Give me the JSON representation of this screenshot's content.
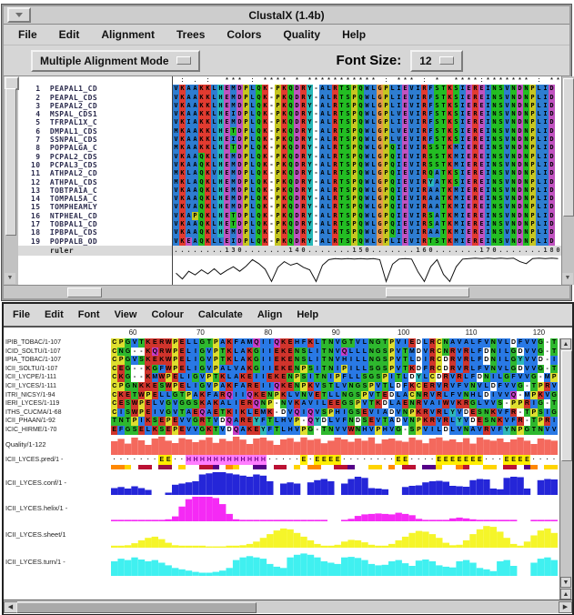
{
  "clustalx": {
    "title": "ClustalX (1.4b)",
    "menus": [
      "File",
      "Edit",
      "Alignment",
      "Trees",
      "Colors",
      "Quality",
      "Help"
    ],
    "mode_button": "Multiple Alignment Mode",
    "font_size_label": "Font Size:",
    "font_size_value": "12",
    "conservation": " : . :  *** : **** * *********** : *** : *  ****:******* : **",
    "ruler_label": "ruler",
    "ruler": "........130.......140.......150.......160.......170.......180",
    "sequences": [
      {
        "num": "1",
        "name": "PEAPAL1_CD",
        "seq": "VKAAKKLHEMDPLQK-PKQDRY-ALRTSPQWLGPLIEVIRFSTKSIEREINSVNDNPLID"
      },
      {
        "num": "2",
        "name": "PEAPAL_CDS",
        "seq": "VKAAKKLHEMDPLQK-PKQDRY-ALRTSPQWLGPLIEVIRFSTKSIEREINSVNDNPLID"
      },
      {
        "num": "3",
        "name": "PEAPAL2_CD",
        "seq": "VKAAKKLHEMDPLQK-PKQDRY-ALRTSPQWLGPLIEVIRFSTKSIEREINSVNDNPLID"
      },
      {
        "num": "4",
        "name": "MSPAL_CDS1",
        "seq": "VKAAKKLHEIDPLQK-PKQDRY-ALRTSPQWLGPLVEVIRFSTKSIEREINSVNDNPLID"
      },
      {
        "num": "5",
        "name": "TFRPAL1X_C",
        "seq": "VKIAKKLHEMDPLQK-PKQDRY-ALRTSPQWLGPLIEVIRFSTKSIEREINSVNDNPLID"
      },
      {
        "num": "6",
        "name": "DMPAL1_CDS",
        "seq": "MKAAKKLHETDPLQK-PKQDRY-ALRTSPQWLGPLVEVIRFSTKSIEREINSVNDNPLID"
      },
      {
        "num": "7",
        "name": "SSNPAL_CDS",
        "seq": "VKAAKKLHEIDPLQK-PKQDRY-ALRTSPQWLGPLVEVIRFSTKSIEREINSVNDNPLID"
      },
      {
        "num": "8",
        "name": "POPPALGA_C",
        "seq": "MKAAKKLHETDPLQK-PKQDRY-ALRTSPQWLGPQIEVIRSSTKMIEREINSVNDNPLID"
      },
      {
        "num": "9",
        "name": "PCPAL2_CDS",
        "seq": "VKAAQKLHEMDPLQK-PKQDRY-ALRTSPQWLGPQIEVIRSSTKMIEREINSVNDNPLID"
      },
      {
        "num": "10",
        "name": "PCPAL3_CDS",
        "seq": "VKAAQKLHEMDPLQK-PKQDRY-ALRTSPQWLGPQIEVIRSSTKMIEREINSVNDNPLID"
      },
      {
        "num": "11",
        "name": "ATHPAL2_CD",
        "seq": "MKLAQKVHEMDPLQK-PKQDRY-ALRTSPQWLGPQIEVIRQATKSIEREINSVNDNPLID"
      },
      {
        "num": "12",
        "name": "ATHPAL_CDS",
        "seq": "MKLAQKLHEMDPLQK-PKQDRY-ALRTSPQWLGPQIEVIRYATKSIEREINSVNDNPLID"
      },
      {
        "num": "13",
        "name": "TOBTPA1A_C",
        "seq": "VKAAQKLHEMDPLQK-PKQDRY-ALRTSPQWLGPQIEVIRAATKMIEREINSVNDNPLID"
      },
      {
        "num": "14",
        "name": "TOMPAL5A_C",
        "seq": "VKAAQKLHEMDPLQK-PKQDRY-ALRTSPQWLGPQIEVIRAATKMIEREINSVNDNPLID"
      },
      {
        "num": "15",
        "name": "TOMPHEAMLY",
        "seq": "VKVAQKLHEMDPLQK-PKQDRY-ALRTSPQWLGPQIEVIRAATKMIEREINSVNDNPLID"
      },
      {
        "num": "16",
        "name": "NTPHEAL_CD",
        "seq": "VKAPQKLHETDPLQK-PKQDRY-ALRTSPQWLGPQIEVIRSATKMIEREINSVNDNPLID"
      },
      {
        "num": "17",
        "name": "TOBPAL1_CD",
        "seq": "VKAAQKLHETDPLQK-PKQDRY-ALRTSPQWLGPQIEVIRSATKMIEREINSVNDNPLID"
      },
      {
        "num": "18",
        "name": "IPBPAL_CDS",
        "seq": "VKAAQKLHEMDPLQK-PKQDRY-ALRTSPQWLGPQIEVIRAATKMIEREINSVNDNPLID"
      },
      {
        "num": "19",
        "name": "POPPALB_OD",
        "seq": "VKEAQKLLEIDPLQK-PKQDRY-ALRTSPQWLGPLIEVIRTSTKMIEREINSVNDNPLID"
      }
    ],
    "color_groups": [
      {
        "res": "ACFILMVW",
        "color": "#2e7dd1"
      },
      {
        "res": "KR",
        "color": "#e23b30"
      },
      {
        "res": "DE",
        "color": "#c053c0"
      },
      {
        "res": "NQST",
        "color": "#23bd23"
      },
      {
        "res": "G",
        "color": "#e6974d"
      },
      {
        "res": "P",
        "color": "#c6c621"
      },
      {
        "res": "HY",
        "color": "#28b8b8"
      },
      {
        "res": "-",
        "color": "#ffffff"
      }
    ],
    "quality_curve": [
      [
        1,
        35
      ],
      [
        2,
        12
      ],
      [
        3,
        42
      ],
      [
        4,
        28
      ],
      [
        5,
        48
      ],
      [
        6,
        32
      ],
      [
        7,
        52
      ],
      [
        8,
        30
      ],
      [
        9,
        46
      ],
      [
        10,
        60
      ],
      [
        11,
        42
      ],
      [
        12,
        62
      ],
      [
        13,
        88
      ],
      [
        14,
        72
      ],
      [
        15,
        50
      ],
      [
        16,
        2
      ],
      [
        17,
        58
      ],
      [
        18,
        80
      ],
      [
        19,
        66
      ],
      [
        20,
        74
      ],
      [
        21,
        58
      ],
      [
        22,
        48
      ],
      [
        23,
        2
      ],
      [
        24,
        66
      ],
      [
        25,
        88
      ],
      [
        26,
        92
      ],
      [
        27,
        90
      ],
      [
        28,
        92
      ],
      [
        29,
        90
      ],
      [
        30,
        92
      ],
      [
        31,
        90
      ],
      [
        32,
        92
      ],
      [
        33,
        88
      ],
      [
        34,
        2
      ],
      [
        35,
        70
      ],
      [
        36,
        90
      ],
      [
        37,
        92
      ],
      [
        38,
        90
      ],
      [
        39,
        40
      ],
      [
        40,
        2
      ],
      [
        41,
        60
      ],
      [
        42,
        88
      ],
      [
        43,
        30
      ],
      [
        44,
        2
      ],
      [
        45,
        60
      ],
      [
        46,
        90
      ],
      [
        47,
        92
      ],
      [
        48,
        94
      ],
      [
        49,
        92
      ],
      [
        50,
        94
      ],
      [
        51,
        92
      ],
      [
        52,
        94
      ],
      [
        53,
        92
      ],
      [
        54,
        94
      ],
      [
        55,
        80
      ],
      [
        56,
        72
      ],
      [
        57,
        92
      ],
      [
        58,
        94
      ],
      [
        59,
        92
      ],
      [
        60,
        94
      ],
      [
        61,
        92
      ]
    ]
  },
  "jalview": {
    "menus": [
      "File",
      "Edit",
      "Font",
      "View",
      "Colour",
      "Calculate",
      "Align",
      "Help"
    ],
    "ruler_ticks": [
      {
        "label": "60",
        "col": 4
      },
      {
        "label": "70",
        "col": 14
      },
      {
        "label": "80",
        "col": 24
      },
      {
        "label": "90",
        "col": 34
      },
      {
        "label": "100",
        "col": 44
      },
      {
        "label": "110",
        "col": 54
      },
      {
        "label": "120",
        "col": 64
      }
    ],
    "sequences": [
      {
        "id": "IPIB_TOBAC/1-107",
        "seq": "CPGVTKERWPELLGTPAKFAMQIIQKEHFKLTNVGTVLNGTPVIEDLRCNAVALFVNVLDFVVG-T"
      },
      {
        "id": "ICID_SOLTU/1-107",
        "seq": "CNG--KQRWPELIGVPTKLAKGIIEKENSLITNVQLLLNGSPVTMDVRCNRVRLFDNILGDVVG-T"
      },
      {
        "id": "IPIA_TOBAC/1-107",
        "seq": "CPGVSKEKWPELIGVPTKLAKGIIEKENSLITNVHILLNGSPVTLDIRCDRVRLFDNILGYVVD-I"
      },
      {
        "id": "ICII_SOLTU/1-107",
        "seq": "CEG--KGFWPELIGVPALVAKGIIEKENPSITNIPILLSGSPVTKDFRCDRVRLFVNVLGDVVG-T"
      },
      {
        "id": "ICII_LYCPE/1-111",
        "seq": "CKG--KMWPELIGVPTKLAKEIIEKENPSITNIPFLLSGSPITLDYLCDRVRLFDNILGFVVG-MP"
      },
      {
        "id": "ICII_LYCES/1-111",
        "seq": "CPGNKKESWPELIGVPAKFAREIIQKENPKVSTLVNGSPVTLDFKCERVRVFVNVLDFVVG-TPRV"
      },
      {
        "id": "ITRI_NICSY/1-94",
        "seq": "CKETWPELLGTPAKFARQIIQKENPKLVNVETLLNGSPVTEDLACNRVRLFVNHLDIVVQ-MPKVG"
      },
      {
        "id": "IERI_LYCES/1-119",
        "seq": "CESWPELVGVGGSKAKALIERQNP-NVKAVILEEGSPVTKDLAENRVAIWVKRGLVVS-PPRIG-T"
      },
      {
        "id": "ITHS_CUCMA/1-68",
        "seq": "CISWPEIVGVTAEQAETKIKLEMK-DVQIQVSPHIGSEVIADVNPKRVRLYVDESNKVFR-TPSIG"
      },
      {
        "id": "ICII_PHAAN/1-92",
        "seq": "TNTPIKSEPEVVGRTVDQAREYFTLHVP-QYDLVFNDSEVTADVNPKRVRLYVDESNKVFR-TPRI"
      },
      {
        "id": "ICIC_HIRME/1-70",
        "seq": "EFGSELKSEPEVVGKTVDQAKEYFTLHVPG-TNVVWNHVPHVG-SPVILDLVNAVRVFYNPGTNVV"
      }
    ],
    "color_groups": [
      {
        "res": "AILMFVH",
        "color": "#2979e5"
      },
      {
        "res": "KRWE",
        "color": "#d0342c"
      },
      {
        "res": "GNST",
        "color": "#2eb82e"
      },
      {
        "res": "PC",
        "color": "#dede2e"
      },
      {
        "res": "Y",
        "color": "#2eb8b8"
      },
      {
        "res": "Q",
        "color": "#c83cc8"
      },
      {
        "res": "D-",
        "color": "#ffffff"
      }
    ],
    "annotations": {
      "quality": {
        "label": "Quality/1-122",
        "color": "#f4695d",
        "values": [
          75,
          88,
          62,
          95,
          80,
          55,
          90,
          100,
          78,
          65,
          92,
          85,
          70,
          82,
          96,
          66,
          88,
          76,
          100,
          84,
          60,
          90,
          95,
          78,
          55,
          85,
          92,
          72,
          96,
          82,
          88,
          64,
          78,
          95,
          85,
          72,
          90,
          78,
          96,
          62,
          85,
          90,
          78,
          72,
          95,
          82,
          64,
          90,
          96,
          78,
          85,
          70,
          92,
          62,
          96,
          84,
          78,
          90,
          70,
          85,
          96,
          78,
          60,
          90,
          84,
          78
        ]
      },
      "pred": {
        "label": "ICII_LYCES.pred/1 -",
        "string": ".......EE..HHHHHHHHHHHH.....E.EEEE........EE....EEEEEEE...EEEE....",
        "e_bg": "#ffee00",
        "h_bg": "#ff7dff",
        "h_fg": "#7a0a8c",
        "dot_fg": "#111111"
      },
      "stripe": {
        "code": "ooy.rr.mm.y..rrp.oy..pp.rr.y.oo..rrp..yy.o.rr.ppy..or..yy.rr.po.yy",
        "palette": {
          "y": "#ffd400",
          "o": "#ff8800",
          "r": "#bb1133",
          "p": "#550088",
          "m": "#991144",
          ".": "#ffffff"
        }
      },
      "conf": {
        "label": "ICII_LYCES.conf/1 -",
        "color": "#2526d8",
        "values": [
          30,
          35,
          28,
          38,
          30,
          22,
          0,
          0,
          10,
          45,
          50,
          55,
          60,
          90,
          95,
          100,
          100,
          95,
          90,
          85,
          80,
          90,
          85,
          60,
          0,
          50,
          55,
          50,
          0,
          55,
          65,
          70,
          60,
          0,
          50,
          70,
          80,
          75,
          30,
          28,
          25,
          0,
          0,
          35,
          40,
          42,
          55,
          60,
          62,
          58,
          40,
          38,
          36,
          65,
          70,
          68,
          28,
          25,
          75,
          80,
          78,
          28,
          0,
          65,
          70,
          68
        ]
      },
      "helix": {
        "label": "ICII_LYCES.helix/1 -",
        "color": "#f52af5",
        "values": [
          6,
          6,
          6,
          6,
          6,
          6,
          6,
          6,
          8,
          20,
          60,
          90,
          100,
          100,
          100,
          95,
          70,
          30,
          8,
          6,
          6,
          6,
          6,
          6,
          6,
          6,
          6,
          6,
          6,
          6,
          6,
          6,
          0,
          0,
          6,
          10,
          22,
          28,
          30,
          32,
          30,
          28,
          35,
          30,
          25,
          10,
          6,
          6,
          6,
          6,
          12,
          15,
          12,
          8,
          6,
          6,
          6,
          6,
          6,
          6,
          0,
          0,
          6,
          6,
          6,
          6
        ]
      },
      "sheet": {
        "label": "ICII_LYCES.sheet/1",
        "color": "#f5f52a",
        "values": [
          8,
          8,
          10,
          18,
          30,
          40,
          45,
          35,
          20,
          10,
          8,
          8,
          8,
          8,
          5,
          5,
          5,
          8,
          8,
          10,
          15,
          25,
          40,
          55,
          70,
          78,
          75,
          60,
          45,
          30,
          15,
          8,
          8,
          12,
          25,
          32,
          30,
          22,
          12,
          8,
          8,
          15,
          30,
          45,
          60,
          68,
          65,
          55,
          40,
          20,
          10,
          12,
          30,
          55,
          75,
          88,
          85,
          65,
          40,
          15,
          8,
          25,
          50,
          70,
          78,
          60
        ]
      },
      "turn": {
        "label": "ICII_LYCES.turn/1 -",
        "color": "#40f0f0",
        "values": [
          55,
          65,
          60,
          70,
          62,
          55,
          60,
          50,
          40,
          30,
          25,
          20,
          15,
          12,
          12,
          15,
          20,
          30,
          60,
          70,
          75,
          70,
          65,
          45,
          35,
          30,
          70,
          80,
          85,
          80,
          70,
          55,
          50,
          45,
          70,
          72,
          68,
          60,
          45,
          40,
          42,
          55,
          60,
          48,
          38,
          58,
          62,
          55,
          40,
          35,
          32,
          55,
          60,
          50,
          30,
          25,
          18,
          55,
          60,
          38,
          0,
          0,
          50,
          65,
          70,
          60
        ]
      }
    }
  }
}
